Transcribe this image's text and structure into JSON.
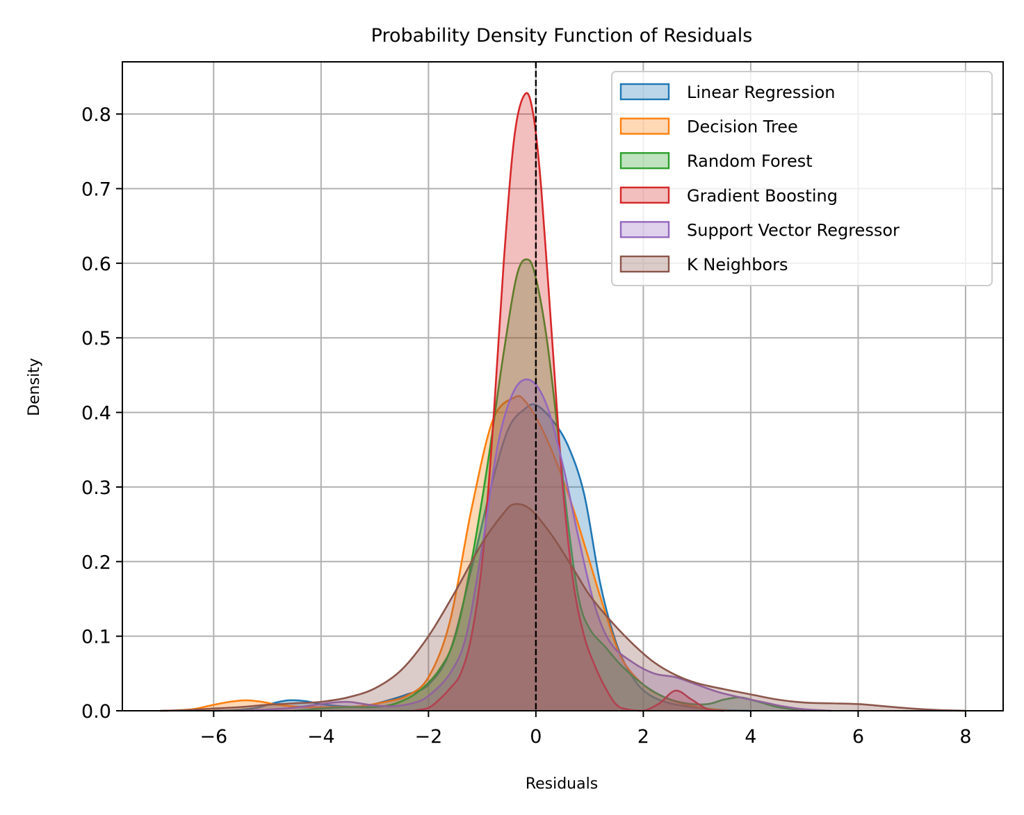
{
  "chart_data": {
    "type": "area",
    "title": "Probability Density Function of Residuals",
    "xlabel": "Residuals",
    "ylabel": "Density",
    "xlim": [
      -7.7,
      8.7
    ],
    "ylim": [
      0,
      0.87
    ],
    "xticks": [
      -6,
      -4,
      -2,
      0,
      2,
      4,
      6,
      8
    ],
    "xtick_labels": [
      "−6",
      "−4",
      "−2",
      "0",
      "2",
      "4",
      "6",
      "8"
    ],
    "yticks": [
      0.0,
      0.1,
      0.2,
      0.3,
      0.4,
      0.5,
      0.6,
      0.7,
      0.8
    ],
    "ytick_labels": [
      "0.0",
      "0.1",
      "0.2",
      "0.3",
      "0.4",
      "0.5",
      "0.6",
      "0.7",
      "0.8"
    ],
    "grid": true,
    "legend_position": "top-right",
    "reference_line": {
      "x": 0,
      "style": "dashed",
      "color": "#000000"
    },
    "series": [
      {
        "name": "Linear Regression",
        "color": "#1f77b4",
        "points": [
          [
            -6.0,
            0.0
          ],
          [
            -5.6,
            0.001
          ],
          [
            -5.2,
            0.004
          ],
          [
            -4.9,
            0.01
          ],
          [
            -4.6,
            0.014
          ],
          [
            -4.3,
            0.013
          ],
          [
            -4.0,
            0.009
          ],
          [
            -3.6,
            0.006
          ],
          [
            -3.2,
            0.006
          ],
          [
            -2.8,
            0.013
          ],
          [
            -2.4,
            0.022
          ],
          [
            -2.0,
            0.035
          ],
          [
            -1.6,
            0.08
          ],
          [
            -1.2,
            0.19
          ],
          [
            -0.8,
            0.31
          ],
          [
            -0.5,
            0.38
          ],
          [
            -0.2,
            0.405
          ],
          [
            0.0,
            0.41
          ],
          [
            0.3,
            0.39
          ],
          [
            0.6,
            0.355
          ],
          [
            0.9,
            0.29
          ],
          [
            1.2,
            0.17
          ],
          [
            1.5,
            0.09
          ],
          [
            1.8,
            0.045
          ],
          [
            2.1,
            0.022
          ],
          [
            2.5,
            0.01
          ],
          [
            3.0,
            0.004
          ],
          [
            3.5,
            0.001
          ],
          [
            4.0,
            0.0
          ]
        ]
      },
      {
        "name": "Decision Tree",
        "color": "#ff7f0e",
        "points": [
          [
            -6.9,
            0.0
          ],
          [
            -6.4,
            0.002
          ],
          [
            -6.0,
            0.008
          ],
          [
            -5.7,
            0.012
          ],
          [
            -5.4,
            0.014
          ],
          [
            -5.1,
            0.012
          ],
          [
            -4.8,
            0.008
          ],
          [
            -4.3,
            0.005
          ],
          [
            -3.8,
            0.005
          ],
          [
            -3.3,
            0.006
          ],
          [
            -2.8,
            0.012
          ],
          [
            -2.4,
            0.02
          ],
          [
            -2.0,
            0.045
          ],
          [
            -1.6,
            0.12
          ],
          [
            -1.2,
            0.27
          ],
          [
            -0.8,
            0.39
          ],
          [
            -0.4,
            0.42
          ],
          [
            -0.2,
            0.415
          ],
          [
            0.1,
            0.38
          ],
          [
            0.4,
            0.33
          ],
          [
            0.7,
            0.27
          ],
          [
            1.0,
            0.2
          ],
          [
            1.3,
            0.13
          ],
          [
            1.6,
            0.07
          ],
          [
            2.0,
            0.035
          ],
          [
            2.4,
            0.018
          ],
          [
            2.8,
            0.008
          ],
          [
            3.2,
            0.003
          ],
          [
            3.6,
            0.0
          ]
        ]
      },
      {
        "name": "Random Forest",
        "color": "#2ca02c",
        "points": [
          [
            -4.5,
            0.0
          ],
          [
            -4.0,
            0.003
          ],
          [
            -3.5,
            0.005
          ],
          [
            -3.0,
            0.005
          ],
          [
            -2.6,
            0.01
          ],
          [
            -2.2,
            0.025
          ],
          [
            -1.8,
            0.055
          ],
          [
            -1.5,
            0.1
          ],
          [
            -1.2,
            0.2
          ],
          [
            -0.9,
            0.33
          ],
          [
            -0.6,
            0.48
          ],
          [
            -0.35,
            0.585
          ],
          [
            -0.15,
            0.605
          ],
          [
            0.0,
            0.58
          ],
          [
            0.2,
            0.5
          ],
          [
            0.4,
            0.38
          ],
          [
            0.6,
            0.25
          ],
          [
            0.8,
            0.15
          ],
          [
            1.0,
            0.11
          ],
          [
            1.3,
            0.085
          ],
          [
            1.6,
            0.06
          ],
          [
            2.0,
            0.035
          ],
          [
            2.4,
            0.018
          ],
          [
            2.8,
            0.01
          ],
          [
            3.2,
            0.009
          ],
          [
            3.5,
            0.015
          ],
          [
            3.8,
            0.018
          ],
          [
            4.1,
            0.013
          ],
          [
            4.5,
            0.005
          ],
          [
            5.0,
            0.0
          ]
        ]
      },
      {
        "name": "Gradient Boosting",
        "color": "#d62728",
        "points": [
          [
            -2.3,
            0.0
          ],
          [
            -2.0,
            0.004
          ],
          [
            -1.8,
            0.015
          ],
          [
            -1.6,
            0.03
          ],
          [
            -1.4,
            0.05
          ],
          [
            -1.2,
            0.1
          ],
          [
            -1.0,
            0.2
          ],
          [
            -0.8,
            0.38
          ],
          [
            -0.6,
            0.6
          ],
          [
            -0.4,
            0.77
          ],
          [
            -0.2,
            0.827
          ],
          [
            -0.05,
            0.8
          ],
          [
            0.1,
            0.7
          ],
          [
            0.3,
            0.5
          ],
          [
            0.5,
            0.3
          ],
          [
            0.7,
            0.17
          ],
          [
            0.9,
            0.1
          ],
          [
            1.1,
            0.06
          ],
          [
            1.3,
            0.03
          ],
          [
            1.5,
            0.008
          ],
          [
            1.7,
            0.002
          ],
          [
            2.0,
            0.0
          ],
          [
            2.3,
            0.01
          ],
          [
            2.6,
            0.027
          ],
          [
            2.9,
            0.015
          ],
          [
            3.2,
            0.002
          ],
          [
            3.5,
            0.0
          ]
        ]
      },
      {
        "name": "Support Vector Regressor",
        "color": "#9467bd",
        "points": [
          [
            -5.5,
            0.0
          ],
          [
            -4.9,
            0.002
          ],
          [
            -4.4,
            0.005
          ],
          [
            -3.9,
            0.01
          ],
          [
            -3.5,
            0.012
          ],
          [
            -3.1,
            0.008
          ],
          [
            -2.7,
            0.006
          ],
          [
            -2.3,
            0.01
          ],
          [
            -2.0,
            0.02
          ],
          [
            -1.6,
            0.05
          ],
          [
            -1.3,
            0.1
          ],
          [
            -1.0,
            0.22
          ],
          [
            -0.7,
            0.36
          ],
          [
            -0.4,
            0.43
          ],
          [
            -0.1,
            0.443
          ],
          [
            0.2,
            0.41
          ],
          [
            0.5,
            0.33
          ],
          [
            0.8,
            0.23
          ],
          [
            1.1,
            0.14
          ],
          [
            1.4,
            0.09
          ],
          [
            1.8,
            0.065
          ],
          [
            2.2,
            0.05
          ],
          [
            2.6,
            0.045
          ],
          [
            3.0,
            0.035
          ],
          [
            3.4,
            0.025
          ],
          [
            3.8,
            0.018
          ],
          [
            4.2,
            0.012
          ],
          [
            4.6,
            0.006
          ],
          [
            5.0,
            0.002
          ],
          [
            5.5,
            0.0
          ]
        ]
      },
      {
        "name": "K Neighbors",
        "color": "#8c564b",
        "points": [
          [
            -7.0,
            0.0
          ],
          [
            -6.5,
            0.001
          ],
          [
            -6.0,
            0.003
          ],
          [
            -5.5,
            0.005
          ],
          [
            -5.0,
            0.008
          ],
          [
            -4.5,
            0.01
          ],
          [
            -4.0,
            0.012
          ],
          [
            -3.5,
            0.018
          ],
          [
            -3.0,
            0.03
          ],
          [
            -2.5,
            0.055
          ],
          [
            -2.0,
            0.1
          ],
          [
            -1.5,
            0.16
          ],
          [
            -1.0,
            0.225
          ],
          [
            -0.6,
            0.265
          ],
          [
            -0.4,
            0.277
          ],
          [
            -0.1,
            0.27
          ],
          [
            0.3,
            0.235
          ],
          [
            0.7,
            0.19
          ],
          [
            1.0,
            0.155
          ],
          [
            1.4,
            0.12
          ],
          [
            1.8,
            0.09
          ],
          [
            2.2,
            0.065
          ],
          [
            2.6,
            0.048
          ],
          [
            3.0,
            0.037
          ],
          [
            3.5,
            0.029
          ],
          [
            4.0,
            0.022
          ],
          [
            4.5,
            0.015
          ],
          [
            5.0,
            0.011
          ],
          [
            5.5,
            0.01
          ],
          [
            6.0,
            0.009
          ],
          [
            6.5,
            0.006
          ],
          [
            7.0,
            0.003
          ],
          [
            7.5,
            0.001
          ],
          [
            8.0,
            0.0
          ]
        ]
      }
    ]
  }
}
